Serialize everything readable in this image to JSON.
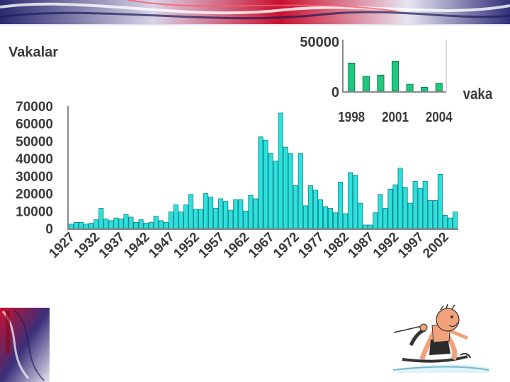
{
  "colors": {
    "bar": "#2ee0dc",
    "bar_stroke": "#0a7f86",
    "inset_bar": "#1fc77f",
    "inset_bar_stroke": "#0a6b3c",
    "axis": "#8a8a8a",
    "text": "#3a3a3a"
  },
  "decorations": {
    "top_banner": "decorative-swirl-banner",
    "bottom_left": "decorative-swirl-corner",
    "bottom_right": "water-skier-cartoon"
  },
  "chart_data": [
    {
      "type": "bar",
      "title": "Vakalar",
      "xlabel": "",
      "ylabel": "",
      "ylim": [
        0,
        70000
      ],
      "yticks": [
        "70000",
        "60000",
        "50000",
        "40000",
        "30000",
        "20000",
        "10000",
        "0"
      ],
      "xtick_labels": [
        "1927",
        "1932",
        "1937",
        "1942",
        "1947",
        "1952",
        "1957",
        "1962",
        "1967",
        "1972",
        "1977",
        "1982",
        "1987",
        "1992",
        "1997",
        "2002"
      ],
      "first_year": 1927,
      "values": [
        2500,
        3500,
        3500,
        2500,
        3000,
        5000,
        11500,
        5500,
        4500,
        6000,
        5500,
        8000,
        6500,
        3500,
        5000,
        3000,
        3500,
        7000,
        4500,
        3500,
        9500,
        13500,
        9500,
        13500,
        19500,
        11000,
        11000,
        20000,
        18000,
        11500,
        17000,
        15500,
        10500,
        16500,
        16500,
        10000,
        19000,
        17000,
        52500,
        50500,
        43000,
        38500,
        66000,
        46500,
        43000,
        24500,
        43000,
        13000,
        24500,
        22000,
        16500,
        12500,
        11500,
        9000,
        26500,
        8500,
        32000,
        30500,
        14500,
        2000,
        2000,
        9000,
        19500,
        11500,
        22500,
        25000,
        34500,
        23500,
        14500,
        27000,
        23000,
        27000,
        16000,
        16000,
        31000,
        7500,
        6000,
        9500
      ],
      "grid": false,
      "legend": "none"
    },
    {
      "type": "bar",
      "title": "",
      "xlabel": "vaka",
      "ylabel": "",
      "ylim": [
        0,
        50000
      ],
      "yticks": [
        "50000",
        "0"
      ],
      "xtick_labels": [
        "1998",
        "2001",
        "2004"
      ],
      "x": [
        1998,
        1999,
        2000,
        2001,
        2002,
        2003,
        2004
      ],
      "values": [
        28000,
        15000,
        16000,
        30000,
        7000,
        4000,
        8000
      ],
      "grid": false,
      "legend": "none"
    }
  ]
}
